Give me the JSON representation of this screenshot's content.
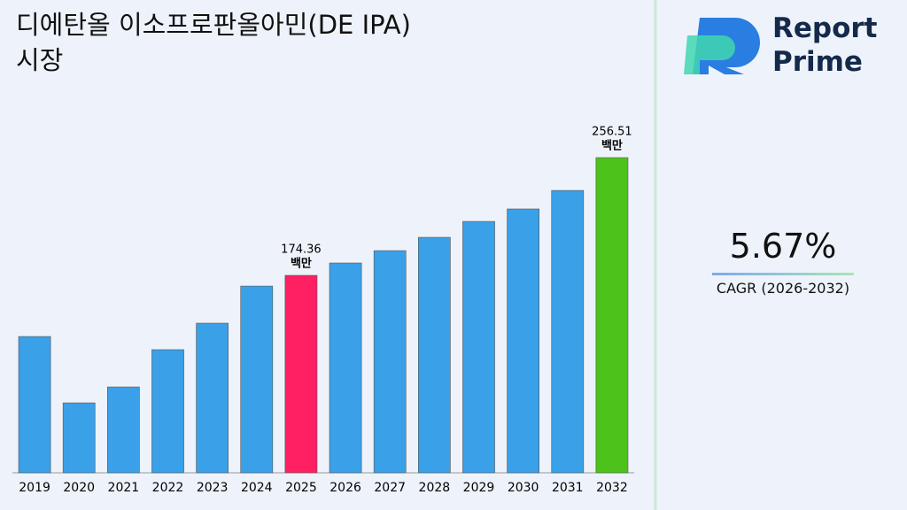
{
  "chart_data": {
    "type": "bar",
    "title": "디에탄올 이소프로판올아민(DE IPA) 시장",
    "categories": [
      "2019",
      "2020",
      "2021",
      "2022",
      "2023",
      "2024",
      "2025",
      "2026",
      "2027",
      "2028",
      "2029",
      "2030",
      "2031",
      "2032"
    ],
    "values": [
      131.7,
      85.4,
      96.5,
      122.5,
      141.0,
      166.9,
      174.36,
      183.0,
      191.6,
      200.9,
      212.0,
      220.7,
      233.6,
      256.51
    ],
    "value_labels": [
      null,
      null,
      null,
      null,
      null,
      null,
      "174.36",
      null,
      null,
      null,
      null,
      null,
      null,
      "256.51"
    ],
    "value_label_unit": "백만",
    "colors": [
      "#3aa0e8",
      "#3aa0e8",
      "#3aa0e8",
      "#3aa0e8",
      "#3aa0e8",
      "#3aa0e8",
      "#ff1f63",
      "#3aa0e8",
      "#3aa0e8",
      "#3aa0e8",
      "#3aa0e8",
      "#3aa0e8",
      "#3aa0e8",
      "#4cc21a"
    ],
    "ylim": [
      36.6,
      280
    ]
  },
  "sidebar": {
    "brand": [
      "Report",
      "Prime"
    ],
    "cagr": "5.67%",
    "cagr_label": "CAGR (2026-2032)"
  }
}
